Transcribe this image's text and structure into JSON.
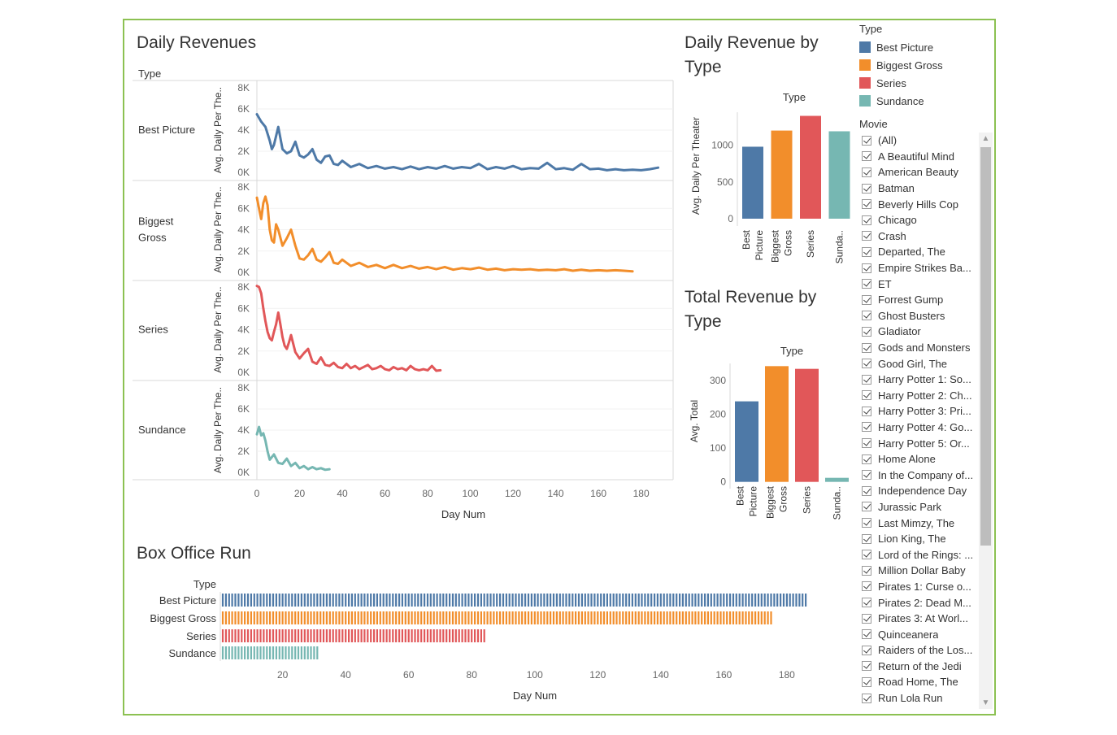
{
  "titles": {
    "daily_revenues": "Daily Revenues",
    "daily_by_type_1": "Daily Revenue by",
    "daily_by_type_2": "Type",
    "total_by_type_1": "Total Revenue by",
    "total_by_type_2": "Type",
    "box_office_run": "Box Office Run"
  },
  "colors": {
    "Best Picture": "#4e79a7",
    "Biggest Gross": "#f28e2b",
    "Series": "#e15759",
    "Sundance": "#76b7b2"
  },
  "legend": {
    "title": "Type",
    "items": [
      "Best Picture",
      "Biggest Gross",
      "Series",
      "Sundance"
    ]
  },
  "movie_filter": {
    "title": "Movie",
    "items": [
      "(All)",
      "A Beautiful Mind",
      "American Beauty",
      "Batman",
      "Beverly Hills Cop",
      "Chicago",
      "Crash",
      "Departed, The",
      "Empire Strikes Ba...",
      "ET",
      "Forrest Gump",
      "Ghost Busters",
      "Gladiator",
      "Gods and Monsters",
      "Good Girl, The",
      "Harry Potter 1: So...",
      "Harry Potter 2: Ch...",
      "Harry Potter 3: Pri...",
      "Harry Potter 4: Go...",
      "Harry Potter 5: Or...",
      "Home Alone",
      "In the Company of...",
      "Independence Day",
      "Jurassic Park",
      "Last Mimzy, The",
      "Lion King, The",
      "Lord of the Rings: ...",
      "Million Dollar Baby",
      "Pirates 1: Curse o...",
      "Pirates 2: Dead M...",
      "Pirates 3: At Worl...",
      "Quinceanera",
      "Raiders of the Los...",
      "Return of the Jedi",
      "Road Home, The",
      "Run Lola Run"
    ]
  },
  "chart_data": [
    {
      "id": "daily_revenues",
      "type": "line",
      "title": "Daily Revenues",
      "row_header": "Type",
      "row_labels": [
        "Best Picture",
        "Biggest\nGross",
        "Series",
        "Sundance"
      ],
      "xlabel": "Day Num",
      "ylabel": "Avg. Daily Per The..",
      "xlim": [
        0,
        195
      ],
      "ylim": [
        0,
        8000
      ],
      "x_ticks": [
        "0",
        "20",
        "40",
        "60",
        "80",
        "100",
        "120",
        "140",
        "160",
        "180"
      ],
      "y_ticks": [
        "0K",
        "2K",
        "4K",
        "6K",
        "8K"
      ],
      "series": [
        {
          "name": "Best Picture",
          "x": [
            0,
            2,
            4,
            6,
            7,
            8,
            10,
            12,
            14,
            16,
            18,
            20,
            22,
            24,
            26,
            28,
            30,
            32,
            34,
            36,
            38,
            40,
            44,
            48,
            52,
            56,
            60,
            64,
            68,
            72,
            76,
            80,
            84,
            88,
            92,
            96,
            100,
            104,
            108,
            112,
            116,
            120,
            124,
            128,
            132,
            136,
            140,
            144,
            148,
            152,
            156,
            160,
            164,
            168,
            172,
            176,
            180,
            184,
            188
          ],
          "y": [
            5500,
            4800,
            4300,
            3000,
            2200,
            2600,
            4300,
            2200,
            1800,
            2000,
            2900,
            1600,
            1400,
            1700,
            2200,
            1200,
            900,
            1500,
            1600,
            800,
            700,
            1100,
            500,
            800,
            400,
            600,
            350,
            500,
            300,
            550,
            300,
            500,
            350,
            600,
            350,
            500,
            400,
            800,
            300,
            500,
            350,
            600,
            300,
            400,
            350,
            900,
            300,
            400,
            250,
            800,
            300,
            350,
            200,
            300,
            200,
            250,
            200,
            300,
            450
          ]
        },
        {
          "name": "Biggest Gross",
          "x": [
            0,
            1,
            2,
            3,
            4,
            5,
            6,
            7,
            8,
            9,
            10,
            12,
            14,
            16,
            18,
            20,
            22,
            24,
            26,
            28,
            30,
            32,
            34,
            36,
            38,
            40,
            44,
            48,
            52,
            56,
            60,
            64,
            68,
            72,
            76,
            80,
            84,
            88,
            92,
            96,
            100,
            104,
            108,
            112,
            116,
            120,
            124,
            128,
            132,
            136,
            140,
            144,
            148,
            152,
            156,
            160,
            164,
            168,
            172,
            176
          ],
          "y": [
            7000,
            6000,
            5000,
            6500,
            7100,
            6300,
            4000,
            3000,
            2800,
            4500,
            4000,
            2500,
            3200,
            4000,
            2500,
            1300,
            1200,
            1600,
            2200,
            1200,
            1000,
            1400,
            1900,
            900,
            800,
            1200,
            600,
            900,
            500,
            700,
            400,
            700,
            400,
            600,
            350,
            500,
            300,
            500,
            250,
            400,
            300,
            450,
            250,
            350,
            200,
            300,
            250,
            300,
            200,
            250,
            200,
            300,
            150,
            250,
            150,
            200,
            150,
            200,
            150,
            100
          ]
        },
        {
          "name": "Series",
          "x": [
            0,
            1,
            2,
            3,
            4,
            5,
            6,
            7,
            8,
            9,
            10,
            11,
            12,
            13,
            14,
            15,
            16,
            18,
            20,
            22,
            24,
            26,
            28,
            30,
            32,
            34,
            36,
            38,
            40,
            42,
            44,
            46,
            48,
            50,
            52,
            54,
            56,
            58,
            60,
            62,
            64,
            66,
            68,
            70,
            72,
            74,
            76,
            78,
            80,
            82,
            84,
            86
          ],
          "y": [
            8100,
            8000,
            7400,
            6000,
            4800,
            3800,
            3200,
            3000,
            3800,
            4500,
            5600,
            4500,
            3300,
            2500,
            2200,
            2800,
            3500,
            1900,
            1300,
            1800,
            2200,
            1000,
            800,
            1400,
            700,
            600,
            900,
            500,
            400,
            800,
            400,
            600,
            300,
            500,
            700,
            300,
            400,
            600,
            300,
            200,
            500,
            300,
            400,
            200,
            600,
            300,
            200,
            300,
            200,
            600,
            150,
            200
          ]
        },
        {
          "name": "Sundance",
          "x": [
            0,
            1,
            2,
            3,
            4,
            5,
            6,
            8,
            10,
            12,
            14,
            16,
            18,
            20,
            22,
            24,
            26,
            28,
            30,
            32,
            34
          ],
          "y": [
            3600,
            4300,
            3500,
            3700,
            3000,
            2000,
            1200,
            1700,
            900,
            800,
            1300,
            600,
            900,
            400,
            600,
            300,
            500,
            300,
            400,
            250,
            300
          ]
        }
      ]
    },
    {
      "id": "daily_by_type",
      "type": "bar",
      "title": "Daily Revenue by Type",
      "column_header": "Type",
      "categories": [
        "Best\nPicture",
        "Biggest\nGross",
        "Series",
        "Sunda.."
      ],
      "values": [
        980,
        1200,
        1400,
        1190
      ],
      "ylabel": "Avg. Daily Per Theater",
      "ylim": [
        -100,
        1450
      ],
      "y_ticks": [
        "0",
        "500",
        "1000"
      ]
    },
    {
      "id": "total_by_type",
      "type": "bar",
      "title": "Total Revenue by Type",
      "column_header": "Type",
      "categories": [
        "Best\nPicture",
        "Biggest\nGross",
        "Series",
        "Sunda.."
      ],
      "values": [
        238,
        342,
        334,
        12
      ],
      "ylabel": "Avg. Total",
      "ylim": [
        -20,
        350
      ],
      "y_ticks": [
        "0",
        "100",
        "200",
        "300"
      ]
    },
    {
      "id": "box_office_run",
      "type": "bar",
      "orientation": "horizontal",
      "title": "Box Office Run",
      "row_header": "Type",
      "categories": [
        "Best Picture",
        "Biggest Gross",
        "Series",
        "Sundance"
      ],
      "values": [
        186,
        175,
        84,
        31
      ],
      "xlabel": "Day Num",
      "xlim": [
        1,
        195
      ],
      "x_ticks": [
        "20",
        "40",
        "60",
        "80",
        "100",
        "120",
        "140",
        "160",
        "180"
      ]
    }
  ]
}
